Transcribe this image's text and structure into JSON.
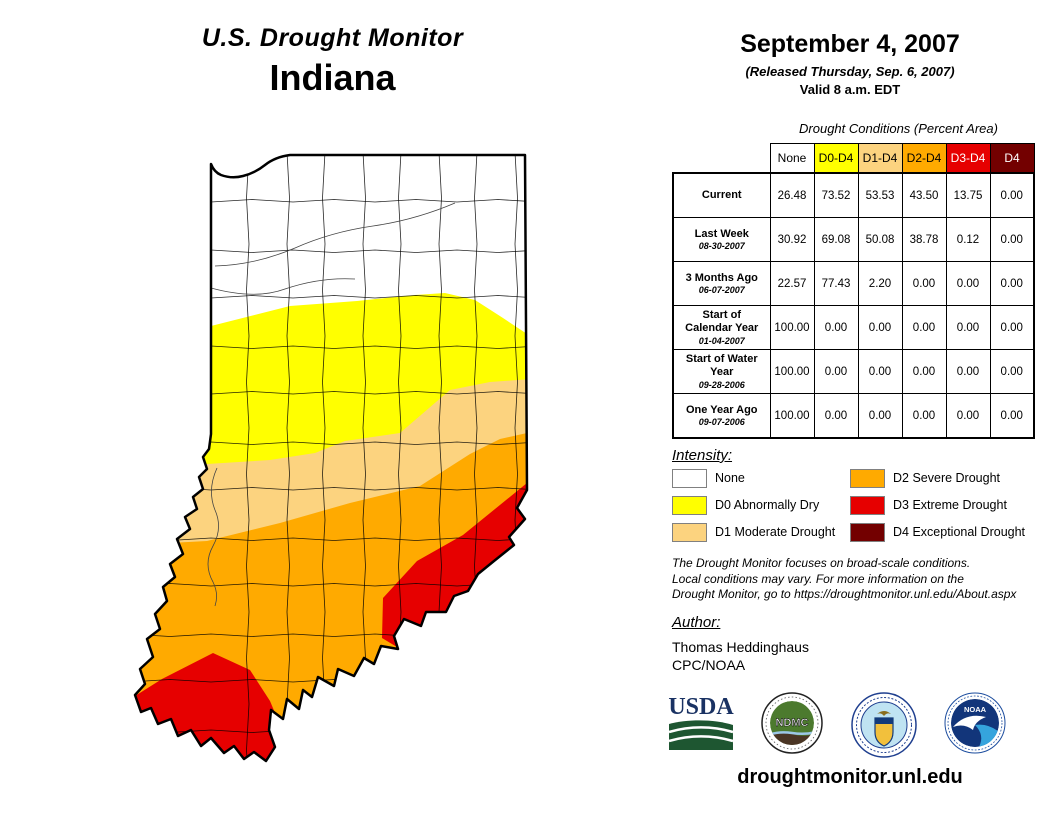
{
  "header": {
    "title": "U.S. Drought Monitor",
    "region": "Indiana"
  },
  "release": {
    "date": "September 4, 2007",
    "released": "(Released Thursday, Sep. 6, 2007)",
    "valid": "Valid 8 a.m. EDT"
  },
  "colors": {
    "none": "#FFFFFF",
    "d0": "#FFFF00",
    "d1": "#FCD37F",
    "d2": "#FFAA00",
    "d3": "#E60000",
    "d4": "#730000"
  },
  "table": {
    "title": "Drought Conditions (Percent Area)",
    "columns": [
      "None",
      "D0-D4",
      "D1-D4",
      "D2-D4",
      "D3-D4",
      "D4"
    ],
    "rows": [
      {
        "label": "Current",
        "sublabel": "",
        "values": [
          "26.48",
          "73.52",
          "53.53",
          "43.50",
          "13.75",
          "0.00"
        ]
      },
      {
        "label": "Last Week",
        "sublabel": "08-30-2007",
        "values": [
          "30.92",
          "69.08",
          "50.08",
          "38.78",
          "0.12",
          "0.00"
        ]
      },
      {
        "label": "3 Months Ago",
        "sublabel": "06-07-2007",
        "values": [
          "22.57",
          "77.43",
          "2.20",
          "0.00",
          "0.00",
          "0.00"
        ]
      },
      {
        "label": "Start of Calendar Year",
        "sublabel": "01-04-2007",
        "values": [
          "100.00",
          "0.00",
          "0.00",
          "0.00",
          "0.00",
          "0.00"
        ]
      },
      {
        "label": "Start of Water Year",
        "sublabel": "09-28-2006",
        "values": [
          "100.00",
          "0.00",
          "0.00",
          "0.00",
          "0.00",
          "0.00"
        ]
      },
      {
        "label": "One Year Ago",
        "sublabel": "09-07-2006",
        "values": [
          "100.00",
          "0.00",
          "0.00",
          "0.00",
          "0.00",
          "0.00"
        ]
      }
    ]
  },
  "legend": {
    "heading": "Intensity:",
    "items": [
      {
        "label": "None"
      },
      {
        "label": "D0 Abnormally Dry"
      },
      {
        "label": "D1 Moderate Drought"
      },
      {
        "label": "D2 Severe Drought"
      },
      {
        "label": "D3 Extreme Drought"
      },
      {
        "label": "D4 Exceptional Drought"
      }
    ]
  },
  "disclaimer": {
    "lines": [
      "The Drought Monitor focuses on broad-scale conditions.",
      "Local conditions may vary. For more information on the",
      "Drought Monitor, go to https://droughtmonitor.unl.edu/About.aspx"
    ]
  },
  "author": {
    "heading": "Author:",
    "name": "Thomas Heddinghaus",
    "org": "CPC/NOAA"
  },
  "logos": {
    "usda": "USDA",
    "ndmc": "NDMC",
    "noaa": "NOAA"
  },
  "footer": {
    "url": "droughtmonitor.unl.edu"
  }
}
